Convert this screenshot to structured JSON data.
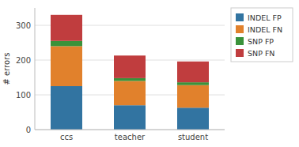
{
  "chart_data": {
    "type": "bar",
    "stacked": true,
    "ylabel": "# errors",
    "categories": [
      "ccs",
      "teacher",
      "student"
    ],
    "series": [
      {
        "name": "INDEL FP",
        "color": "#3274a1",
        "values": [
          125,
          70,
          63
        ]
      },
      {
        "name": "INDEL FN",
        "color": "#e1812c",
        "values": [
          115,
          70,
          65
        ]
      },
      {
        "name": "SNP FP",
        "color": "#3a923a",
        "values": [
          15,
          8,
          8
        ]
      },
      {
        "name": "SNP FN",
        "color": "#c03d3e",
        "values": [
          75,
          65,
          60
        ]
      }
    ],
    "ylim": [
      0,
      350
    ],
    "yticks": [
      0,
      100,
      200,
      300
    ],
    "grid": true,
    "legend": "right"
  }
}
